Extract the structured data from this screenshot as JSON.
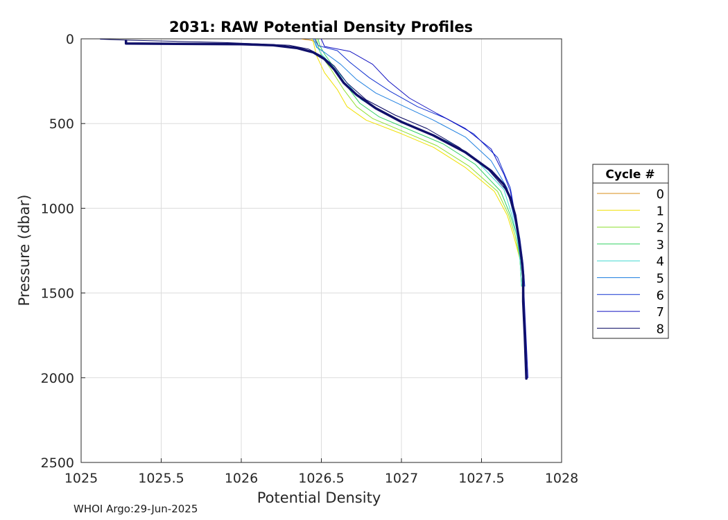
{
  "chart_data": {
    "type": "line",
    "title": "2031: RAW Potential Density Profiles",
    "xlabel": "Potential Density",
    "ylabel": "Pressure (dbar)",
    "xlim": [
      1025,
      1028
    ],
    "ylim": [
      0,
      2500
    ],
    "y_reversed": true,
    "x_ticks": [
      1025,
      1025.5,
      1026,
      1026.5,
      1027,
      1027.5,
      1028
    ],
    "x_tick_labels": [
      "1025",
      "1025.5",
      "1026",
      "1026.5",
      "1027",
      "1027.5",
      "1028"
    ],
    "y_ticks": [
      0,
      500,
      1000,
      1500,
      2000,
      2500
    ],
    "y_tick_labels": [
      "0",
      "500",
      "1000",
      "1500",
      "2000",
      "2500"
    ],
    "grid": true,
    "legend": {
      "title": "Cycle #",
      "placement": "outside-right"
    },
    "series": [
      {
        "name": "0",
        "color": "#d98c1a",
        "width": 1,
        "points": [
          [
            1026.38,
            2
          ],
          [
            1026.42,
            6
          ],
          [
            1026.45,
            12
          ],
          [
            1026.47,
            25
          ]
        ]
      },
      {
        "name": "1",
        "color": "#f0e000",
        "width": 1,
        "points": [
          [
            1026.44,
            2
          ],
          [
            1026.45,
            20
          ],
          [
            1026.46,
            60
          ],
          [
            1026.47,
            100
          ],
          [
            1026.52,
            200
          ],
          [
            1026.6,
            300
          ],
          [
            1026.66,
            400
          ],
          [
            1026.78,
            480
          ],
          [
            1027.0,
            560
          ],
          [
            1027.2,
            640
          ],
          [
            1027.4,
            760
          ],
          [
            1027.58,
            900
          ],
          [
            1027.66,
            1040
          ],
          [
            1027.7,
            1160
          ],
          [
            1027.74,
            1300
          ],
          [
            1027.75,
            1460
          ]
        ]
      },
      {
        "name": "2",
        "color": "#8ee030",
        "width": 1,
        "points": [
          [
            1026.47,
            2
          ],
          [
            1026.48,
            40
          ],
          [
            1026.5,
            100
          ],
          [
            1026.56,
            180
          ],
          [
            1026.64,
            300
          ],
          [
            1026.72,
            400
          ],
          [
            1026.82,
            470
          ],
          [
            1027.02,
            550
          ],
          [
            1027.22,
            630
          ],
          [
            1027.42,
            750
          ],
          [
            1027.6,
            900
          ],
          [
            1027.67,
            1040
          ],
          [
            1027.71,
            1160
          ],
          [
            1027.74,
            1300
          ],
          [
            1027.75,
            1460
          ]
        ]
      },
      {
        "name": "3",
        "color": "#30d060",
        "width": 1,
        "points": [
          [
            1026.48,
            2
          ],
          [
            1026.49,
            40
          ],
          [
            1026.52,
            90
          ],
          [
            1026.58,
            170
          ],
          [
            1026.66,
            280
          ],
          [
            1026.74,
            380
          ],
          [
            1026.86,
            460
          ],
          [
            1027.06,
            540
          ],
          [
            1027.26,
            620
          ],
          [
            1027.46,
            740
          ],
          [
            1027.62,
            900
          ],
          [
            1027.68,
            1040
          ],
          [
            1027.72,
            1160
          ],
          [
            1027.74,
            1300
          ],
          [
            1027.75,
            1460
          ]
        ]
      },
      {
        "name": "4",
        "color": "#40d8d0",
        "width": 1,
        "points": [
          [
            1026.46,
            2
          ],
          [
            1026.47,
            40
          ],
          [
            1026.5,
            90
          ],
          [
            1026.57,
            160
          ],
          [
            1026.66,
            260
          ],
          [
            1026.75,
            360
          ],
          [
            1026.9,
            440
          ],
          [
            1027.1,
            530
          ],
          [
            1027.3,
            610
          ],
          [
            1027.48,
            730
          ],
          [
            1027.64,
            890
          ],
          [
            1027.69,
            1040
          ],
          [
            1027.72,
            1160
          ],
          [
            1027.74,
            1300
          ],
          [
            1027.75,
            1460
          ]
        ]
      },
      {
        "name": "5",
        "color": "#2080e0",
        "width": 1,
        "points": [
          [
            1026.45,
            2
          ],
          [
            1026.47,
            50
          ],
          [
            1026.52,
            80
          ],
          [
            1026.62,
            150
          ],
          [
            1026.72,
            240
          ],
          [
            1026.84,
            320
          ],
          [
            1027.02,
            400
          ],
          [
            1027.2,
            480
          ],
          [
            1027.4,
            580
          ],
          [
            1027.56,
            720
          ],
          [
            1027.66,
            880
          ],
          [
            1027.7,
            1040
          ],
          [
            1027.73,
            1160
          ],
          [
            1027.75,
            1320
          ],
          [
            1027.76,
            1460
          ]
        ]
      },
      {
        "name": "6",
        "color": "#1030d0",
        "width": 1,
        "points": [
          [
            1026.46,
            2
          ],
          [
            1026.48,
            40
          ],
          [
            1026.6,
            70
          ],
          [
            1026.68,
            140
          ],
          [
            1026.8,
            230
          ],
          [
            1026.93,
            310
          ],
          [
            1027.1,
            400
          ],
          [
            1027.28,
            470
          ],
          [
            1027.45,
            560
          ],
          [
            1027.6,
            700
          ],
          [
            1027.68,
            880
          ],
          [
            1027.71,
            1040
          ],
          [
            1027.74,
            1180
          ],
          [
            1027.76,
            1330
          ],
          [
            1027.77,
            1460
          ]
        ]
      },
      {
        "name": "7",
        "color": "#1010c0",
        "width": 1,
        "points": [
          [
            1026.5,
            2
          ],
          [
            1026.52,
            45
          ],
          [
            1026.68,
            75
          ],
          [
            1026.82,
            150
          ],
          [
            1026.92,
            250
          ],
          [
            1027.05,
            350
          ],
          [
            1027.22,
            440
          ],
          [
            1027.4,
            530
          ],
          [
            1027.56,
            650
          ],
          [
            1027.64,
            800
          ],
          [
            1027.68,
            900
          ],
          [
            1027.71,
            1040
          ],
          [
            1027.74,
            1200
          ],
          [
            1027.76,
            1400
          ],
          [
            1027.78,
            1800
          ],
          [
            1027.79,
            2000
          ]
        ]
      },
      {
        "name": "8",
        "color": "#060660",
        "width": 1,
        "points": [
          [
            1025.12,
            2
          ],
          [
            1025.3,
            8
          ],
          [
            1025.6,
            15
          ],
          [
            1025.9,
            22
          ],
          [
            1026.1,
            30
          ],
          [
            1026.3,
            38
          ],
          [
            1026.42,
            60
          ],
          [
            1026.5,
            100
          ],
          [
            1026.58,
            160
          ],
          [
            1026.66,
            260
          ],
          [
            1026.78,
            360
          ],
          [
            1026.96,
            450
          ],
          [
            1027.16,
            530
          ],
          [
            1027.36,
            640
          ],
          [
            1027.54,
            770
          ],
          [
            1027.66,
            900
          ],
          [
            1027.7,
            1020
          ],
          [
            1027.74,
            1200
          ],
          [
            1027.76,
            1400
          ],
          [
            1027.77,
            1700
          ],
          [
            1027.78,
            2000
          ]
        ]
      },
      {
        "name": "",
        "color": "#10106a",
        "width": 3.5,
        "legend": false,
        "points": [
          [
            1025.28,
            12
          ],
          [
            1025.28,
            28
          ],
          [
            1025.6,
            30
          ],
          [
            1026.0,
            32
          ],
          [
            1026.2,
            38
          ],
          [
            1026.35,
            55
          ],
          [
            1026.45,
            80
          ],
          [
            1026.52,
            120
          ],
          [
            1026.58,
            180
          ],
          [
            1026.64,
            260
          ],
          [
            1026.72,
            330
          ],
          [
            1026.84,
            410
          ],
          [
            1027.0,
            490
          ],
          [
            1027.2,
            570
          ],
          [
            1027.4,
            670
          ],
          [
            1027.56,
            780
          ],
          [
            1027.64,
            860
          ],
          [
            1027.68,
            940
          ],
          [
            1027.71,
            1040
          ],
          [
            1027.73,
            1160
          ],
          [
            1027.75,
            1300
          ],
          [
            1027.76,
            1400
          ],
          [
            1027.76,
            1550
          ],
          [
            1027.77,
            1750
          ],
          [
            1027.78,
            2005
          ]
        ]
      }
    ]
  },
  "footer": {
    "text": "WHOI Argo:29-Jun-2025"
  }
}
